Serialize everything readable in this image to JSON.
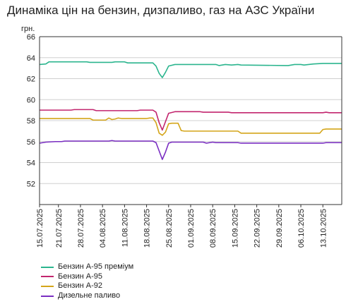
{
  "chart_data": {
    "type": "line",
    "title": "Динаміка цін на бензин, дизпаливо, газ на АЗС України",
    "ylabel": "грн.",
    "xlabel": "",
    "ylim": [
      50,
      66
    ],
    "yticks": [
      52,
      54,
      56,
      58,
      60,
      62,
      64,
      66
    ],
    "xlim": [
      "2025-07-15",
      "2025-10-19"
    ],
    "xtick_labels": [
      "15.07.2025",
      "21.07.2025",
      "28.07.2025",
      "04.08.2025",
      "11.08.2025",
      "18.08.2025",
      "25.08.2025",
      "01.09.2025",
      "08.09.2025",
      "15.09.2025",
      "22.09.2025",
      "29.09.2025",
      "06.10.2025",
      "13.10.2025"
    ],
    "xtick_dates": [
      "2025-07-15",
      "2025-07-21",
      "2025-07-28",
      "2025-08-04",
      "2025-08-11",
      "2025-08-18",
      "2025-08-25",
      "2025-09-01",
      "2025-09-08",
      "2025-09-15",
      "2025-09-22",
      "2025-09-29",
      "2025-10-06",
      "2025-10-13"
    ],
    "grid": "horizontal",
    "legend_position": "bottom-left",
    "series": [
      {
        "name": "Бензин А-95 преміум",
        "color": "#2bb58e",
        "points": [
          [
            "2025-07-15",
            63.35
          ],
          [
            "2025-07-17",
            63.4
          ],
          [
            "2025-07-18",
            63.6
          ],
          [
            "2025-07-20",
            63.6
          ],
          [
            "2025-07-30",
            63.6
          ],
          [
            "2025-07-31",
            63.55
          ],
          [
            "2025-08-07",
            63.55
          ],
          [
            "2025-08-08",
            63.6
          ],
          [
            "2025-08-11",
            63.6
          ],
          [
            "2025-08-12",
            63.5
          ],
          [
            "2025-08-20",
            63.5
          ],
          [
            "2025-08-21",
            63.2
          ],
          [
            "2025-08-22",
            62.5
          ],
          [
            "2025-08-23",
            62.1
          ],
          [
            "2025-08-24",
            62.6
          ],
          [
            "2025-08-25",
            63.2
          ],
          [
            "2025-08-27",
            63.35
          ],
          [
            "2025-09-09",
            63.35
          ],
          [
            "2025-09-10",
            63.25
          ],
          [
            "2025-09-12",
            63.35
          ],
          [
            "2025-09-14",
            63.3
          ],
          [
            "2025-09-16",
            63.35
          ],
          [
            "2025-09-17",
            63.3
          ],
          [
            "2025-10-01",
            63.25
          ],
          [
            "2025-10-02",
            63.25
          ],
          [
            "2025-10-04",
            63.35
          ],
          [
            "2025-10-06",
            63.35
          ],
          [
            "2025-10-07",
            63.3
          ],
          [
            "2025-10-10",
            63.4
          ],
          [
            "2025-10-13",
            63.45
          ],
          [
            "2025-10-19",
            63.45
          ]
        ]
      },
      {
        "name": "Бензин А-95",
        "color": "#c2256e",
        "points": [
          [
            "2025-07-15",
            59.0
          ],
          [
            "2025-07-25",
            59.0
          ],
          [
            "2025-07-26",
            59.05
          ],
          [
            "2025-08-01",
            59.05
          ],
          [
            "2025-08-02",
            58.95
          ],
          [
            "2025-08-08",
            58.95
          ],
          [
            "2025-08-09",
            58.95
          ],
          [
            "2025-08-15",
            58.95
          ],
          [
            "2025-08-16",
            59.0
          ],
          [
            "2025-08-20",
            59.0
          ],
          [
            "2025-08-21",
            58.8
          ],
          [
            "2025-08-22",
            57.8
          ],
          [
            "2025-08-23",
            57.1
          ],
          [
            "2025-08-24",
            57.9
          ],
          [
            "2025-08-25",
            58.7
          ],
          [
            "2025-08-27",
            58.85
          ],
          [
            "2025-09-04",
            58.85
          ],
          [
            "2025-09-05",
            58.8
          ],
          [
            "2025-09-13",
            58.8
          ],
          [
            "2025-09-14",
            58.75
          ],
          [
            "2025-10-13",
            58.75
          ],
          [
            "2025-10-14",
            58.8
          ],
          [
            "2025-10-15",
            58.75
          ],
          [
            "2025-10-19",
            58.75
          ]
        ]
      },
      {
        "name": "Бензин А-92",
        "color": "#d4a519",
        "points": [
          [
            "2025-07-15",
            58.2
          ],
          [
            "2025-07-31",
            58.2
          ],
          [
            "2025-08-01",
            58.05
          ],
          [
            "2025-08-05",
            58.05
          ],
          [
            "2025-08-06",
            58.25
          ],
          [
            "2025-08-07",
            58.1
          ],
          [
            "2025-08-08",
            58.15
          ],
          [
            "2025-08-09",
            58.25
          ],
          [
            "2025-08-10",
            58.2
          ],
          [
            "2025-08-18",
            58.2
          ],
          [
            "2025-08-19",
            58.25
          ],
          [
            "2025-08-20",
            58.25
          ],
          [
            "2025-08-21",
            57.8
          ],
          [
            "2025-08-22",
            56.8
          ],
          [
            "2025-08-23",
            56.6
          ],
          [
            "2025-08-24",
            56.9
          ],
          [
            "2025-08-25",
            57.7
          ],
          [
            "2025-08-26",
            57.75
          ],
          [
            "2025-08-28",
            57.75
          ],
          [
            "2025-08-29",
            57.05
          ],
          [
            "2025-08-30",
            57.0
          ],
          [
            "2025-09-16",
            57.0
          ],
          [
            "2025-09-17",
            56.8
          ],
          [
            "2025-10-12",
            56.8
          ],
          [
            "2025-10-13",
            57.15
          ],
          [
            "2025-10-14",
            57.2
          ],
          [
            "2025-10-19",
            57.2
          ]
        ]
      },
      {
        "name": "Дизельне паливо",
        "color": "#7a2ec2",
        "points": [
          [
            "2025-07-15",
            55.85
          ],
          [
            "2025-07-17",
            55.95
          ],
          [
            "2025-07-20",
            56.0
          ],
          [
            "2025-07-22",
            56.0
          ],
          [
            "2025-07-23",
            56.05
          ],
          [
            "2025-08-06",
            56.05
          ],
          [
            "2025-08-07",
            56.1
          ],
          [
            "2025-08-08",
            56.05
          ],
          [
            "2025-08-20",
            56.05
          ],
          [
            "2025-08-21",
            55.9
          ],
          [
            "2025-08-22",
            55.1
          ],
          [
            "2025-08-23",
            54.3
          ],
          [
            "2025-08-24",
            55.0
          ],
          [
            "2025-08-25",
            55.85
          ],
          [
            "2025-08-26",
            55.95
          ],
          [
            "2025-09-05",
            55.95
          ],
          [
            "2025-09-06",
            55.85
          ],
          [
            "2025-09-08",
            55.95
          ],
          [
            "2025-09-09",
            55.9
          ],
          [
            "2025-09-16",
            55.9
          ],
          [
            "2025-09-17",
            55.85
          ],
          [
            "2025-10-13",
            55.85
          ],
          [
            "2025-10-14",
            55.9
          ],
          [
            "2025-10-19",
            55.9
          ]
        ]
      }
    ]
  }
}
